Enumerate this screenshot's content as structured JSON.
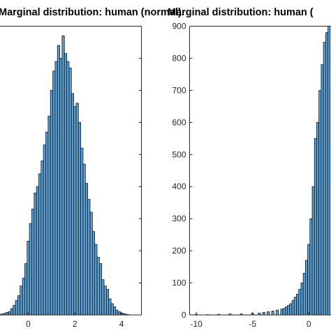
{
  "chart_data": [
    {
      "type": "bar",
      "title": "Marginal distribution: human (normal)",
      "xlabel": "",
      "ylabel": "",
      "xlim": [
        -1.45,
        4.85
      ],
      "ylim": [
        0,
        900
      ],
      "xticks": [
        0,
        2,
        4
      ],
      "xtick_labels": [
        "0",
        "2",
        "4"
      ],
      "ytick_labels": [],
      "bar_width": 0.1,
      "bar_color": "#5aa0d2",
      "x": [
        -1.2,
        -1.1,
        -1.0,
        -0.9,
        -0.8,
        -0.7,
        -0.6,
        -0.5,
        -0.4,
        -0.3,
        -0.2,
        -0.1,
        0.0,
        0.1,
        0.2,
        0.3,
        0.4,
        0.5,
        0.6,
        0.7,
        0.8,
        0.9,
        1.0,
        1.1,
        1.2,
        1.3,
        1.4,
        1.5,
        1.6,
        1.7,
        1.8,
        1.9,
        2.0,
        2.1,
        2.2,
        2.3,
        2.4,
        2.5,
        2.6,
        2.7,
        2.8,
        2.9,
        3.0,
        3.1,
        3.2,
        3.3,
        3.4,
        3.5,
        3.6,
        3.7,
        3.8,
        3.9,
        4.0,
        4.1,
        4.2,
        4.3
      ],
      "values": [
        2,
        3,
        5,
        8,
        10,
        20,
        30,
        45,
        60,
        90,
        115,
        160,
        230,
        285,
        330,
        380,
        400,
        440,
        480,
        530,
        570,
        620,
        700,
        760,
        790,
        840,
        800,
        870,
        815,
        790,
        770,
        690,
        650,
        660,
        600,
        520,
        470,
        410,
        360,
        320,
        260,
        220,
        180,
        160,
        110,
        90,
        80,
        50,
        35,
        25,
        15,
        10,
        6,
        4,
        2,
        1
      ]
    },
    {
      "type": "bar",
      "title": "Marginal distribution: human (",
      "xlabel": "",
      "ylabel": "",
      "xlim": [
        -10.6,
        2.1
      ],
      "ylim": [
        0,
        900
      ],
      "xticks": [
        -10,
        -5,
        0
      ],
      "xtick_labels": [
        "-10",
        "-5",
        "0"
      ],
      "yticks": [
        0,
        100,
        200,
        300,
        400,
        500,
        600,
        700,
        800,
        900
      ],
      "ytick_labels": [
        "0",
        "100",
        "200",
        "300",
        "400",
        "500",
        "600",
        "700",
        "800",
        "900"
      ],
      "bar_width": 0.2,
      "bar_color": "#5aa0d2",
      "x": [
        -10.0,
        -9.0,
        -8.0,
        -7.0,
        -6.0,
        -5.0,
        -4.4,
        -4.0,
        -3.6,
        -3.2,
        -2.8,
        -2.4,
        -2.2,
        -2.0,
        -1.8,
        -1.6,
        -1.4,
        -1.2,
        -1.0,
        -0.8,
        -0.6,
        -0.4,
        -0.2,
        0.0,
        0.2,
        0.4,
        0.6,
        0.8,
        1.0,
        1.2,
        1.4,
        1.6,
        1.8
      ],
      "values": [
        2,
        1,
        2,
        3,
        3,
        5,
        6,
        8,
        10,
        12,
        15,
        18,
        20,
        25,
        30,
        35,
        45,
        55,
        65,
        80,
        100,
        130,
        170,
        220,
        300,
        400,
        550,
        600,
        700,
        780,
        850,
        880,
        900
      ]
    }
  ]
}
